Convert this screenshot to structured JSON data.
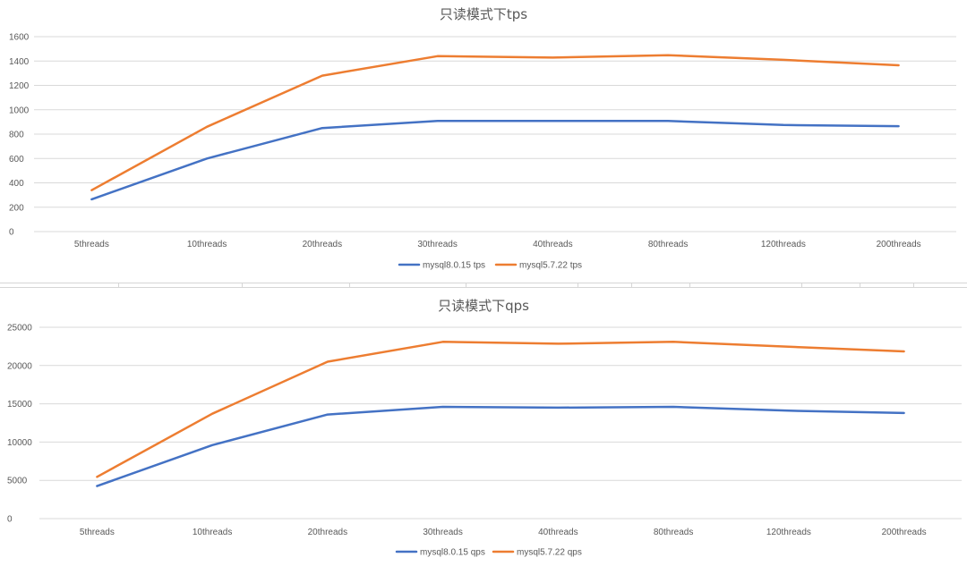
{
  "chart_data": [
    {
      "type": "line",
      "title": "只读模式下tps",
      "categories": [
        "5threads",
        "10threads",
        "20threads",
        "30threads",
        "40threads",
        "80threads",
        "120threads",
        "200threads"
      ],
      "series": [
        {
          "name": "mysql8.0.15 tps",
          "color": "#4472c4",
          "values": [
            265,
            600,
            850,
            908,
            908,
            908,
            875,
            865
          ]
        },
        {
          "name": "mysql5.7.22 tps",
          "color": "#ed7d31",
          "values": [
            340,
            860,
            1280,
            1440,
            1428,
            1448,
            1410,
            1365
          ]
        }
      ],
      "yticks": [
        "0",
        "200",
        "400",
        "600",
        "800",
        "1000",
        "1200",
        "1400",
        "1600"
      ],
      "ylim": [
        0,
        1600
      ],
      "grid": true,
      "legend": "bottom"
    },
    {
      "type": "line",
      "title": "只读模式下qps",
      "categories": [
        "5threads",
        "10threads",
        "20threads",
        "30threads",
        "40threads",
        "80threads",
        "120threads",
        "200threads"
      ],
      "series": [
        {
          "name": "mysql8.0.15 qps",
          "color": "#4472c4",
          "values": [
            4250,
            9600,
            13600,
            14600,
            14500,
            14600,
            14100,
            13800
          ]
        },
        {
          "name": "mysql5.7.22 qps",
          "color": "#ed7d31",
          "values": [
            5450,
            13700,
            20500,
            23100,
            22850,
            23100,
            22450,
            21850
          ]
        }
      ],
      "yticks": [
        "0",
        "5000",
        "10000",
        "15000",
        "20000",
        "25000"
      ],
      "ylim": [
        0,
        25000
      ],
      "grid": true,
      "legend": "bottom"
    }
  ]
}
